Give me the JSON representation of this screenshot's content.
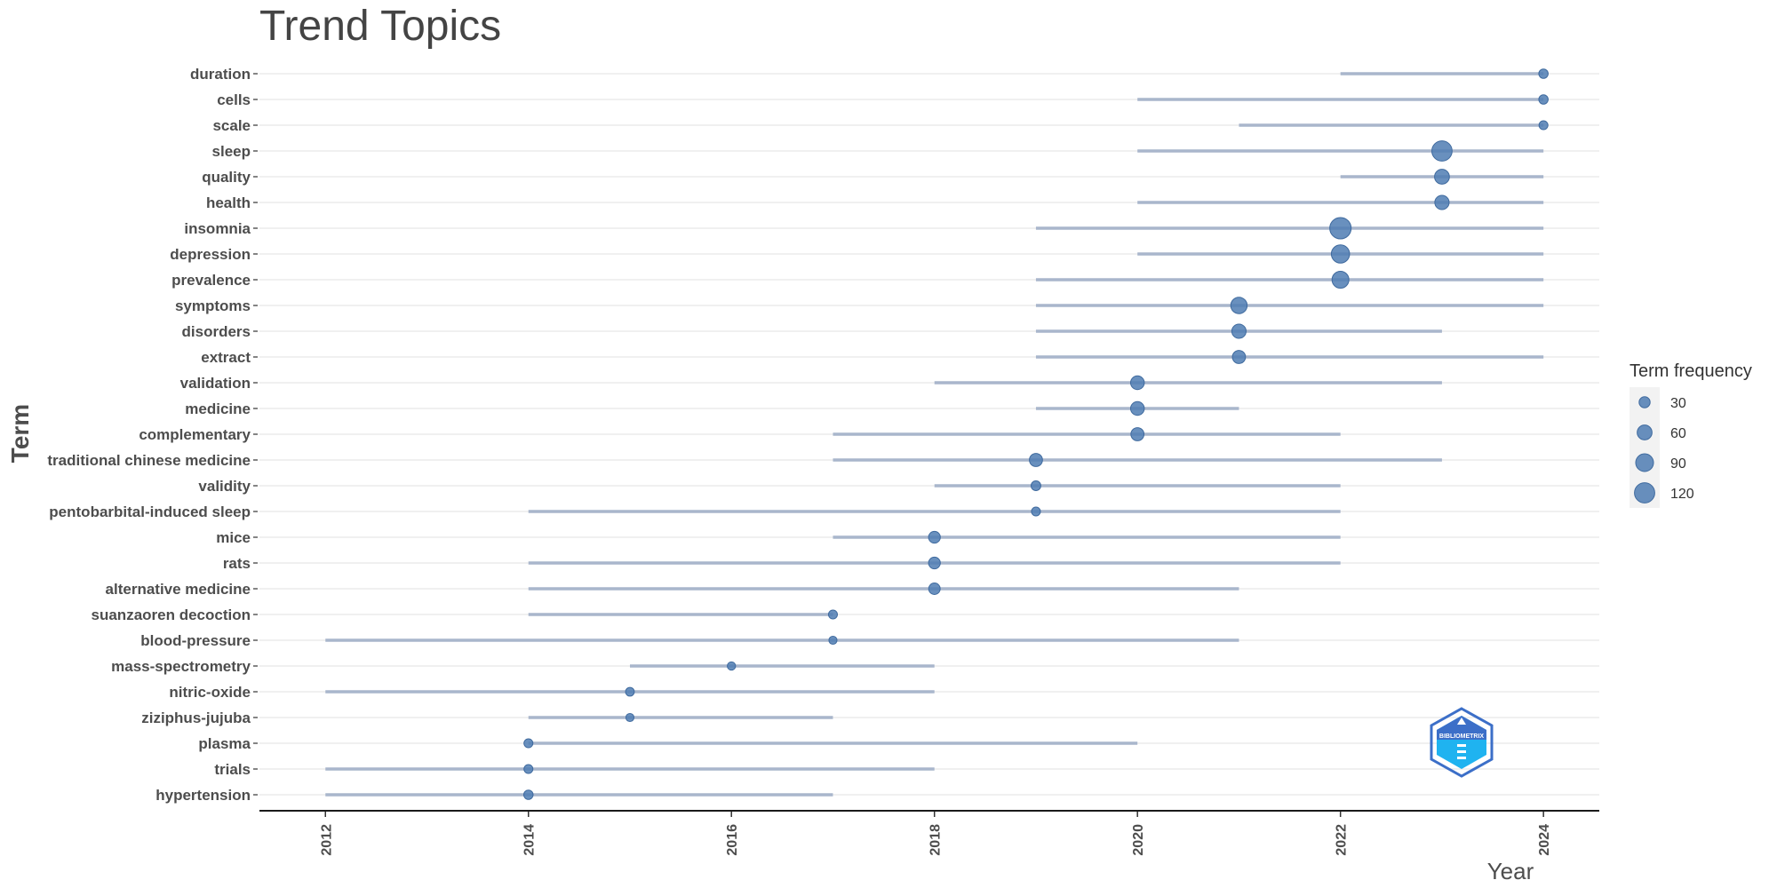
{
  "colors": {
    "point": "#4f7db3",
    "segment": "#a9b6cc",
    "grid": "#ebebeb",
    "axis": "#1a1a1a",
    "text": "#4d4d4d",
    "title": "#444444",
    "logo_outer": "#3c6fc8",
    "logo_inner": "#1fb3f0"
  },
  "logo": {
    "text": "BIBLIOMETRIX"
  },
  "chart_data": {
    "type": "scatter",
    "title": "Trend Topics",
    "xlabel": "Year",
    "ylabel": "Term",
    "xlim": [
      2011.35,
      2024.55
    ],
    "xticks": [
      2012,
      2014,
      2016,
      2018,
      2020,
      2022,
      2024
    ],
    "grid": true,
    "legend": {
      "title": "Term frequency",
      "position": "right",
      "entries": [
        {
          "label": "30",
          "size": 30
        },
        {
          "label": "60",
          "size": 60
        },
        {
          "label": "90",
          "size": 90
        },
        {
          "label": "120",
          "size": 120
        }
      ]
    },
    "series": [
      {
        "term": "duration",
        "start": 2022,
        "end": 2024,
        "median": 2024,
        "freq": 20
      },
      {
        "term": "cells",
        "start": 2020,
        "end": 2024,
        "median": 2024,
        "freq": 20
      },
      {
        "term": "scale",
        "start": 2021,
        "end": 2024,
        "median": 2024,
        "freq": 18
      },
      {
        "term": "sleep",
        "start": 2020,
        "end": 2024,
        "median": 2023,
        "freq": 120
      },
      {
        "term": "quality",
        "start": 2022,
        "end": 2024,
        "median": 2023,
        "freq": 60
      },
      {
        "term": "health",
        "start": 2020,
        "end": 2024,
        "median": 2023,
        "freq": 55
      },
      {
        "term": "insomnia",
        "start": 2019,
        "end": 2024,
        "median": 2022,
        "freq": 135
      },
      {
        "term": "depression",
        "start": 2020,
        "end": 2024,
        "median": 2022,
        "freq": 95
      },
      {
        "term": "prevalence",
        "start": 2019,
        "end": 2024,
        "median": 2022,
        "freq": 80
      },
      {
        "term": "symptoms",
        "start": 2019,
        "end": 2024,
        "median": 2021,
        "freq": 75
      },
      {
        "term": "disorders",
        "start": 2019,
        "end": 2023,
        "median": 2021,
        "freq": 55
      },
      {
        "term": "extract",
        "start": 2019,
        "end": 2024,
        "median": 2021,
        "freq": 45
      },
      {
        "term": "validation",
        "start": 2018,
        "end": 2023,
        "median": 2020,
        "freq": 50
      },
      {
        "term": "medicine",
        "start": 2019,
        "end": 2021,
        "median": 2020,
        "freq": 50
      },
      {
        "term": "complementary",
        "start": 2017,
        "end": 2022,
        "median": 2020,
        "freq": 45
      },
      {
        "term": "traditional chinese medicine",
        "start": 2017,
        "end": 2023,
        "median": 2019,
        "freq": 45
      },
      {
        "term": "validity",
        "start": 2018,
        "end": 2022,
        "median": 2019,
        "freq": 22
      },
      {
        "term": "pentobarbital-induced sleep",
        "start": 2014,
        "end": 2022,
        "median": 2019,
        "freq": 18
      },
      {
        "term": "mice",
        "start": 2017,
        "end": 2022,
        "median": 2018,
        "freq": 35
      },
      {
        "term": "rats",
        "start": 2014,
        "end": 2022,
        "median": 2018,
        "freq": 35
      },
      {
        "term": "alternative medicine",
        "start": 2014,
        "end": 2021,
        "median": 2018,
        "freq": 33
      },
      {
        "term": "suanzaoren decoction",
        "start": 2014,
        "end": 2017,
        "median": 2017,
        "freq": 18
      },
      {
        "term": "blood-pressure",
        "start": 2012,
        "end": 2021,
        "median": 2017,
        "freq": 14
      },
      {
        "term": "mass-spectrometry",
        "start": 2015,
        "end": 2018,
        "median": 2016,
        "freq": 15
      },
      {
        "term": "nitric-oxide",
        "start": 2012,
        "end": 2018,
        "median": 2015,
        "freq": 17
      },
      {
        "term": "ziziphus-jujuba",
        "start": 2014,
        "end": 2017,
        "median": 2015,
        "freq": 14
      },
      {
        "term": "plasma",
        "start": 2014,
        "end": 2020,
        "median": 2014,
        "freq": 18
      },
      {
        "term": "trials",
        "start": 2012,
        "end": 2018,
        "median": 2014,
        "freq": 18
      },
      {
        "term": "hypertension",
        "start": 2012,
        "end": 2017,
        "median": 2014,
        "freq": 20
      }
    ]
  }
}
